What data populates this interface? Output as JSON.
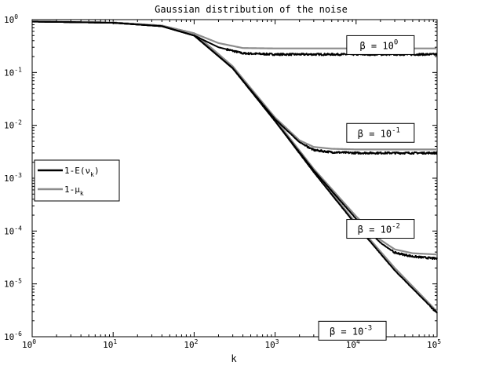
{
  "chart_data": {
    "type": "line",
    "title": "Gaussian distribution of the noise",
    "xlabel": "k",
    "ylabel": "",
    "x_scale": "log",
    "y_scale": "log",
    "xlim": [
      1,
      100000
    ],
    "ylim": [
      1e-06,
      1
    ],
    "x_ticks": [
      {
        "value": 1,
        "base": "10",
        "exp": "0"
      },
      {
        "value": 10,
        "base": "10",
        "exp": "1"
      },
      {
        "value": 100,
        "base": "10",
        "exp": "2"
      },
      {
        "value": 1000,
        "base": "10",
        "exp": "3"
      },
      {
        "value": 10000,
        "base": "10",
        "exp": "4"
      },
      {
        "value": 100000,
        "base": "10",
        "exp": "5"
      }
    ],
    "y_ticks": [
      {
        "value": 1,
        "base": "10",
        "exp": "0"
      },
      {
        "value": 0.1,
        "base": "10",
        "exp": "-1"
      },
      {
        "value": 0.01,
        "base": "10",
        "exp": "-2"
      },
      {
        "value": 0.001,
        "base": "10",
        "exp": "-3"
      },
      {
        "value": 0.0001,
        "base": "10",
        "exp": "-4"
      },
      {
        "value": 1e-05,
        "base": "10",
        "exp": "-5"
      },
      {
        "value": 1e-06,
        "base": "10",
        "exp": "-6"
      }
    ],
    "grid": false,
    "legend": {
      "placement": "left",
      "entries": [
        {
          "text": "1-E(ν",
          "sub": "k",
          "after": ")",
          "color": "#000000"
        },
        {
          "text": "1-μ",
          "sub": "k",
          "after": "",
          "color": "#8c8c8c"
        }
      ]
    },
    "beta_labels": [
      {
        "prefix": "β = 10",
        "exp": "0",
        "x": 20000,
        "y": 0.33
      },
      {
        "prefix": "β = 10",
        "exp": "-1",
        "x": 20000,
        "y": 0.0072
      },
      {
        "prefix": "β = 10",
        "exp": "-2",
        "x": 20000,
        "y": 0.00011
      },
      {
        "prefix": "β = 10",
        "exp": "-3",
        "x": 9000,
        "y": 1.3e-06
      }
    ],
    "series": [
      {
        "kind": "1-E",
        "beta": "10^0",
        "color": "#000000",
        "noisy": true,
        "x": [
          1,
          10,
          40,
          100,
          200,
          400,
          1000,
          10000,
          100000
        ],
        "y": [
          0.92,
          0.87,
          0.75,
          0.5,
          0.3,
          0.23,
          0.22,
          0.22,
          0.22
        ]
      },
      {
        "kind": "1-mu",
        "beta": "10^0",
        "color": "#8c8c8c",
        "noisy": false,
        "x": [
          1,
          10,
          40,
          100,
          200,
          400,
          1000,
          10000,
          100000
        ],
        "y": [
          0.92,
          0.88,
          0.77,
          0.55,
          0.36,
          0.29,
          0.285,
          0.285,
          0.285
        ]
      },
      {
        "kind": "1-E",
        "beta": "10^-1",
        "color": "#000000",
        "noisy": true,
        "x": [
          1,
          10,
          40,
          100,
          300,
          1000,
          2000,
          3000,
          5000,
          10000,
          100000
        ],
        "y": [
          0.92,
          0.87,
          0.75,
          0.5,
          0.12,
          0.013,
          0.0048,
          0.0034,
          0.0031,
          0.003,
          0.003
        ]
      },
      {
        "kind": "1-mu",
        "beta": "10^-1",
        "color": "#8c8c8c",
        "noisy": false,
        "x": [
          1,
          10,
          40,
          100,
          300,
          1000,
          2000,
          3000,
          5000,
          10000,
          100000
        ],
        "y": [
          0.92,
          0.88,
          0.77,
          0.55,
          0.13,
          0.014,
          0.0052,
          0.0039,
          0.0036,
          0.0035,
          0.0035
        ]
      },
      {
        "kind": "1-E",
        "beta": "10^-2",
        "color": "#000000",
        "noisy": true,
        "x": [
          1,
          10,
          40,
          100,
          300,
          1000,
          3000,
          10000,
          20000,
          30000,
          50000,
          100000
        ],
        "y": [
          0.92,
          0.87,
          0.75,
          0.5,
          0.12,
          0.012,
          0.0014,
          0.00017,
          6e-05,
          3.9e-05,
          3.3e-05,
          3e-05
        ]
      },
      {
        "kind": "1-mu",
        "beta": "10^-2",
        "color": "#8c8c8c",
        "noisy": false,
        "x": [
          1,
          10,
          40,
          100,
          300,
          1000,
          3000,
          10000,
          20000,
          30000,
          50000,
          100000
        ],
        "y": [
          0.92,
          0.88,
          0.77,
          0.55,
          0.13,
          0.013,
          0.0015,
          0.00019,
          6.8e-05,
          4.5e-05,
          3.8e-05,
          3.6e-05
        ]
      },
      {
        "kind": "1-E",
        "beta": "10^-3",
        "color": "#000000",
        "noisy": true,
        "x": [
          1,
          10,
          40,
          100,
          300,
          1000,
          3000,
          10000,
          30000,
          100000
        ],
        "y": [
          0.92,
          0.87,
          0.75,
          0.5,
          0.12,
          0.012,
          0.0013,
          0.00013,
          1.8e-05,
          2.8e-06
        ]
      },
      {
        "kind": "1-mu",
        "beta": "10^-3",
        "color": "#8c8c8c",
        "noisy": false,
        "x": [
          1,
          10,
          40,
          100,
          300,
          1000,
          3000,
          10000,
          30000,
          100000
        ],
        "y": [
          0.92,
          0.88,
          0.77,
          0.55,
          0.13,
          0.013,
          0.0014,
          0.00014,
          2e-05,
          3e-06
        ]
      }
    ]
  }
}
